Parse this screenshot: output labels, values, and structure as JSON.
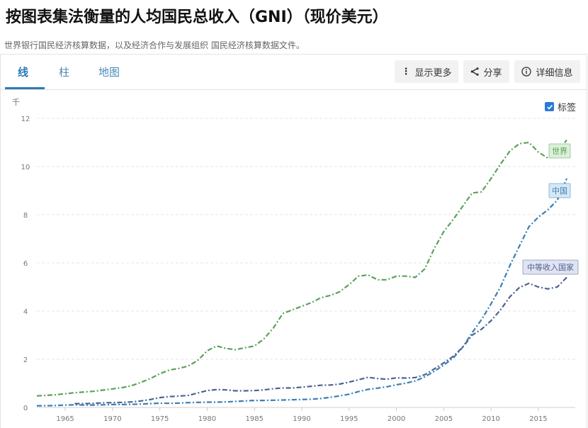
{
  "page": {
    "title": "按图表集法衡量的人均国民总收入（GNI）（现价美元）",
    "subtitle": "世界银行国民经济核算数据，以及经济合作与发展组织 国民经济核算数据文件。"
  },
  "tabs": [
    {
      "label": "线",
      "active": true
    },
    {
      "label": "柱",
      "active": false
    },
    {
      "label": "地图",
      "active": false
    }
  ],
  "toolbar": {
    "more_label": "显示更多",
    "share_label": "分享",
    "details_label": "详细信息"
  },
  "labels_toggle": {
    "label": "标签",
    "checked": true
  },
  "chart_data": {
    "type": "line",
    "unit_label": "千",
    "ylim": [
      0,
      12
    ],
    "yticks": [
      0,
      2,
      4,
      6,
      8,
      10,
      12
    ],
    "xlim": [
      1962,
      2018
    ],
    "xticks": [
      1965,
      1970,
      1975,
      1980,
      1985,
      1990,
      1995,
      2000,
      2005,
      2010,
      2015
    ],
    "grid": true,
    "series": [
      {
        "name": "世界",
        "color": "#5ba05b",
        "label_bg": "#dcefd9",
        "x": [
          1962,
          1963,
          1964,
          1965,
          1966,
          1967,
          1968,
          1969,
          1970,
          1971,
          1972,
          1973,
          1974,
          1975,
          1976,
          1977,
          1978,
          1979,
          1980,
          1981,
          1982,
          1983,
          1984,
          1985,
          1986,
          1987,
          1988,
          1989,
          1990,
          1991,
          1992,
          1993,
          1994,
          1995,
          1996,
          1997,
          1998,
          1999,
          2000,
          2001,
          2002,
          2003,
          2004,
          2005,
          2006,
          2007,
          2008,
          2009,
          2010,
          2011,
          2012,
          2013,
          2014,
          2015,
          2016,
          2017,
          2018
        ],
        "values": [
          0.48,
          0.5,
          0.53,
          0.57,
          0.61,
          0.64,
          0.67,
          0.72,
          0.77,
          0.82,
          0.9,
          1.04,
          1.2,
          1.4,
          1.55,
          1.62,
          1.72,
          1.95,
          2.35,
          2.55,
          2.45,
          2.4,
          2.48,
          2.55,
          2.85,
          3.3,
          3.9,
          4.05,
          4.2,
          4.35,
          4.55,
          4.65,
          4.8,
          5.1,
          5.45,
          5.5,
          5.3,
          5.3,
          5.45,
          5.45,
          5.4,
          5.75,
          6.6,
          7.3,
          7.8,
          8.35,
          8.9,
          8.95,
          9.5,
          10.1,
          10.65,
          10.95,
          11.0,
          10.6,
          10.35,
          10.6,
          11.1
        ]
      },
      {
        "name": "中国",
        "color": "#3a7fb5",
        "label_bg": "#d6e8f5",
        "x": [
          1962,
          1963,
          1964,
          1965,
          1966,
          1967,
          1968,
          1969,
          1970,
          1971,
          1972,
          1973,
          1974,
          1975,
          1976,
          1977,
          1978,
          1979,
          1980,
          1981,
          1982,
          1983,
          1984,
          1985,
          1986,
          1987,
          1988,
          1989,
          1990,
          1991,
          1992,
          1993,
          1994,
          1995,
          1996,
          1997,
          1998,
          1999,
          2000,
          2001,
          2002,
          2003,
          2004,
          2005,
          2006,
          2007,
          2008,
          2009,
          2010,
          2011,
          2012,
          2013,
          2014,
          2015,
          2016,
          2017,
          2018
        ],
        "values": [
          0.07,
          0.07,
          0.08,
          0.1,
          0.11,
          0.1,
          0.1,
          0.11,
          0.12,
          0.12,
          0.13,
          0.14,
          0.16,
          0.18,
          0.17,
          0.18,
          0.2,
          0.21,
          0.22,
          0.22,
          0.23,
          0.25,
          0.27,
          0.29,
          0.29,
          0.3,
          0.31,
          0.32,
          0.33,
          0.34,
          0.37,
          0.42,
          0.48,
          0.55,
          0.66,
          0.75,
          0.8,
          0.86,
          0.94,
          1.01,
          1.1,
          1.27,
          1.5,
          1.76,
          2.05,
          2.5,
          3.1,
          3.65,
          4.3,
          5.0,
          5.9,
          6.7,
          7.5,
          7.9,
          8.2,
          8.6,
          9.5
        ]
      },
      {
        "name": "中等收入国家",
        "color": "#4c6391",
        "label_bg": "#e1e3f2",
        "x": [
          1966,
          1967,
          1968,
          1969,
          1970,
          1971,
          1972,
          1973,
          1974,
          1975,
          1976,
          1977,
          1978,
          1979,
          1980,
          1981,
          1982,
          1983,
          1984,
          1985,
          1986,
          1987,
          1988,
          1989,
          1990,
          1991,
          1992,
          1993,
          1994,
          1995,
          1996,
          1997,
          1998,
          1999,
          2000,
          2001,
          2002,
          2003,
          2004,
          2005,
          2006,
          2007,
          2008,
          2009,
          2010,
          2011,
          2012,
          2013,
          2014,
          2015,
          2016,
          2017,
          2018
        ],
        "values": [
          0.16,
          0.16,
          0.17,
          0.19,
          0.2,
          0.21,
          0.23,
          0.27,
          0.33,
          0.41,
          0.45,
          0.47,
          0.5,
          0.6,
          0.7,
          0.74,
          0.73,
          0.69,
          0.69,
          0.7,
          0.73,
          0.78,
          0.81,
          0.81,
          0.84,
          0.88,
          0.92,
          0.93,
          0.97,
          1.05,
          1.15,
          1.25,
          1.2,
          1.17,
          1.23,
          1.22,
          1.24,
          1.36,
          1.6,
          1.85,
          2.12,
          2.5,
          3.0,
          3.25,
          3.6,
          4.05,
          4.6,
          4.98,
          5.15,
          5.0,
          4.92,
          5.0,
          5.4
        ]
      }
    ]
  }
}
